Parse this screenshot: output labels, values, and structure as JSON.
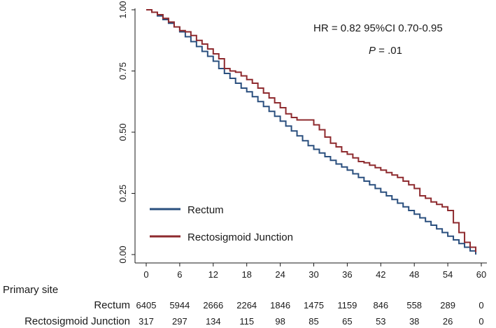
{
  "chart_data": {
    "type": "line",
    "step": true,
    "xlim": [
      0,
      60
    ],
    "ylim": [
      0,
      1
    ],
    "x_ticks": [
      0,
      6,
      12,
      18,
      24,
      30,
      36,
      42,
      48,
      54,
      60
    ],
    "y_ticks": [
      "0.00",
      "0.25",
      "0.50",
      "0.75",
      "1.00"
    ],
    "grid": false,
    "legend": {
      "position": "bottom-left",
      "entries": [
        "Rectum",
        "Rectosigmoid Junction"
      ]
    },
    "annotation": {
      "hr_line": "HR = 0.82  95%CI 0.70-0.95",
      "p_label": "P",
      "p_value": " = .01"
    },
    "series": [
      {
        "name": "Rectum",
        "color": "#2a4f7e",
        "x": [
          0,
          1,
          2,
          3,
          4,
          5,
          6,
          7,
          8,
          9,
          10,
          11,
          12,
          13,
          14,
          15,
          16,
          17,
          18,
          19,
          20,
          21,
          22,
          23,
          24,
          25,
          26,
          27,
          28,
          29,
          30,
          31,
          32,
          33,
          34,
          35,
          36,
          37,
          38,
          39,
          40,
          41,
          42,
          43,
          44,
          45,
          46,
          47,
          48,
          49,
          50,
          51,
          52,
          53,
          54,
          55,
          56,
          57,
          58,
          59
        ],
        "y": [
          1.0,
          0.99,
          0.975,
          0.96,
          0.945,
          0.93,
          0.91,
          0.89,
          0.87,
          0.85,
          0.83,
          0.81,
          0.79,
          0.76,
          0.74,
          0.72,
          0.7,
          0.68,
          0.665,
          0.645,
          0.625,
          0.605,
          0.585,
          0.565,
          0.545,
          0.525,
          0.505,
          0.485,
          0.465,
          0.445,
          0.43,
          0.415,
          0.4,
          0.385,
          0.37,
          0.358,
          0.345,
          0.33,
          0.315,
          0.3,
          0.285,
          0.27,
          0.255,
          0.24,
          0.225,
          0.21,
          0.195,
          0.18,
          0.165,
          0.15,
          0.135,
          0.12,
          0.105,
          0.09,
          0.075,
          0.06,
          0.045,
          0.03,
          0.015,
          0.0
        ]
      },
      {
        "name": "Rectosigmoid Junction",
        "color": "#8e2a2e",
        "x": [
          0,
          1,
          2,
          3,
          4,
          5,
          6,
          7,
          8,
          9,
          10,
          11,
          12,
          13,
          14,
          15,
          16,
          17,
          18,
          19,
          20,
          21,
          22,
          23,
          24,
          25,
          26,
          27,
          28,
          29,
          30,
          31,
          32,
          33,
          34,
          35,
          36,
          37,
          38,
          39,
          40,
          41,
          42,
          43,
          44,
          45,
          46,
          47,
          48,
          49,
          50,
          51,
          52,
          53,
          54,
          55,
          56,
          57,
          58,
          59
        ],
        "y": [
          1.0,
          0.99,
          0.98,
          0.965,
          0.95,
          0.93,
          0.915,
          0.91,
          0.895,
          0.875,
          0.86,
          0.84,
          0.82,
          0.8,
          0.76,
          0.75,
          0.745,
          0.73,
          0.715,
          0.7,
          0.68,
          0.66,
          0.64,
          0.62,
          0.6,
          0.575,
          0.56,
          0.55,
          0.55,
          0.55,
          0.53,
          0.51,
          0.48,
          0.455,
          0.44,
          0.42,
          0.41,
          0.395,
          0.38,
          0.375,
          0.365,
          0.355,
          0.345,
          0.335,
          0.325,
          0.315,
          0.3,
          0.285,
          0.27,
          0.24,
          0.23,
          0.215,
          0.205,
          0.195,
          0.18,
          0.13,
          0.09,
          0.05,
          0.03,
          0.01
        ]
      }
    ],
    "risk_table": {
      "title": "Primary site",
      "times": [
        0,
        6,
        12,
        18,
        24,
        30,
        36,
        42,
        48,
        54,
        60
      ],
      "rows": [
        {
          "label": "Rectum",
          "values": [
            6405,
            5944,
            2666,
            2264,
            1846,
            1475,
            1159,
            846,
            558,
            289,
            0
          ]
        },
        {
          "label": "Rectosigmoid Junction",
          "values": [
            317,
            297,
            134,
            115,
            98,
            85,
            65,
            53,
            38,
            26,
            0
          ]
        }
      ]
    }
  }
}
